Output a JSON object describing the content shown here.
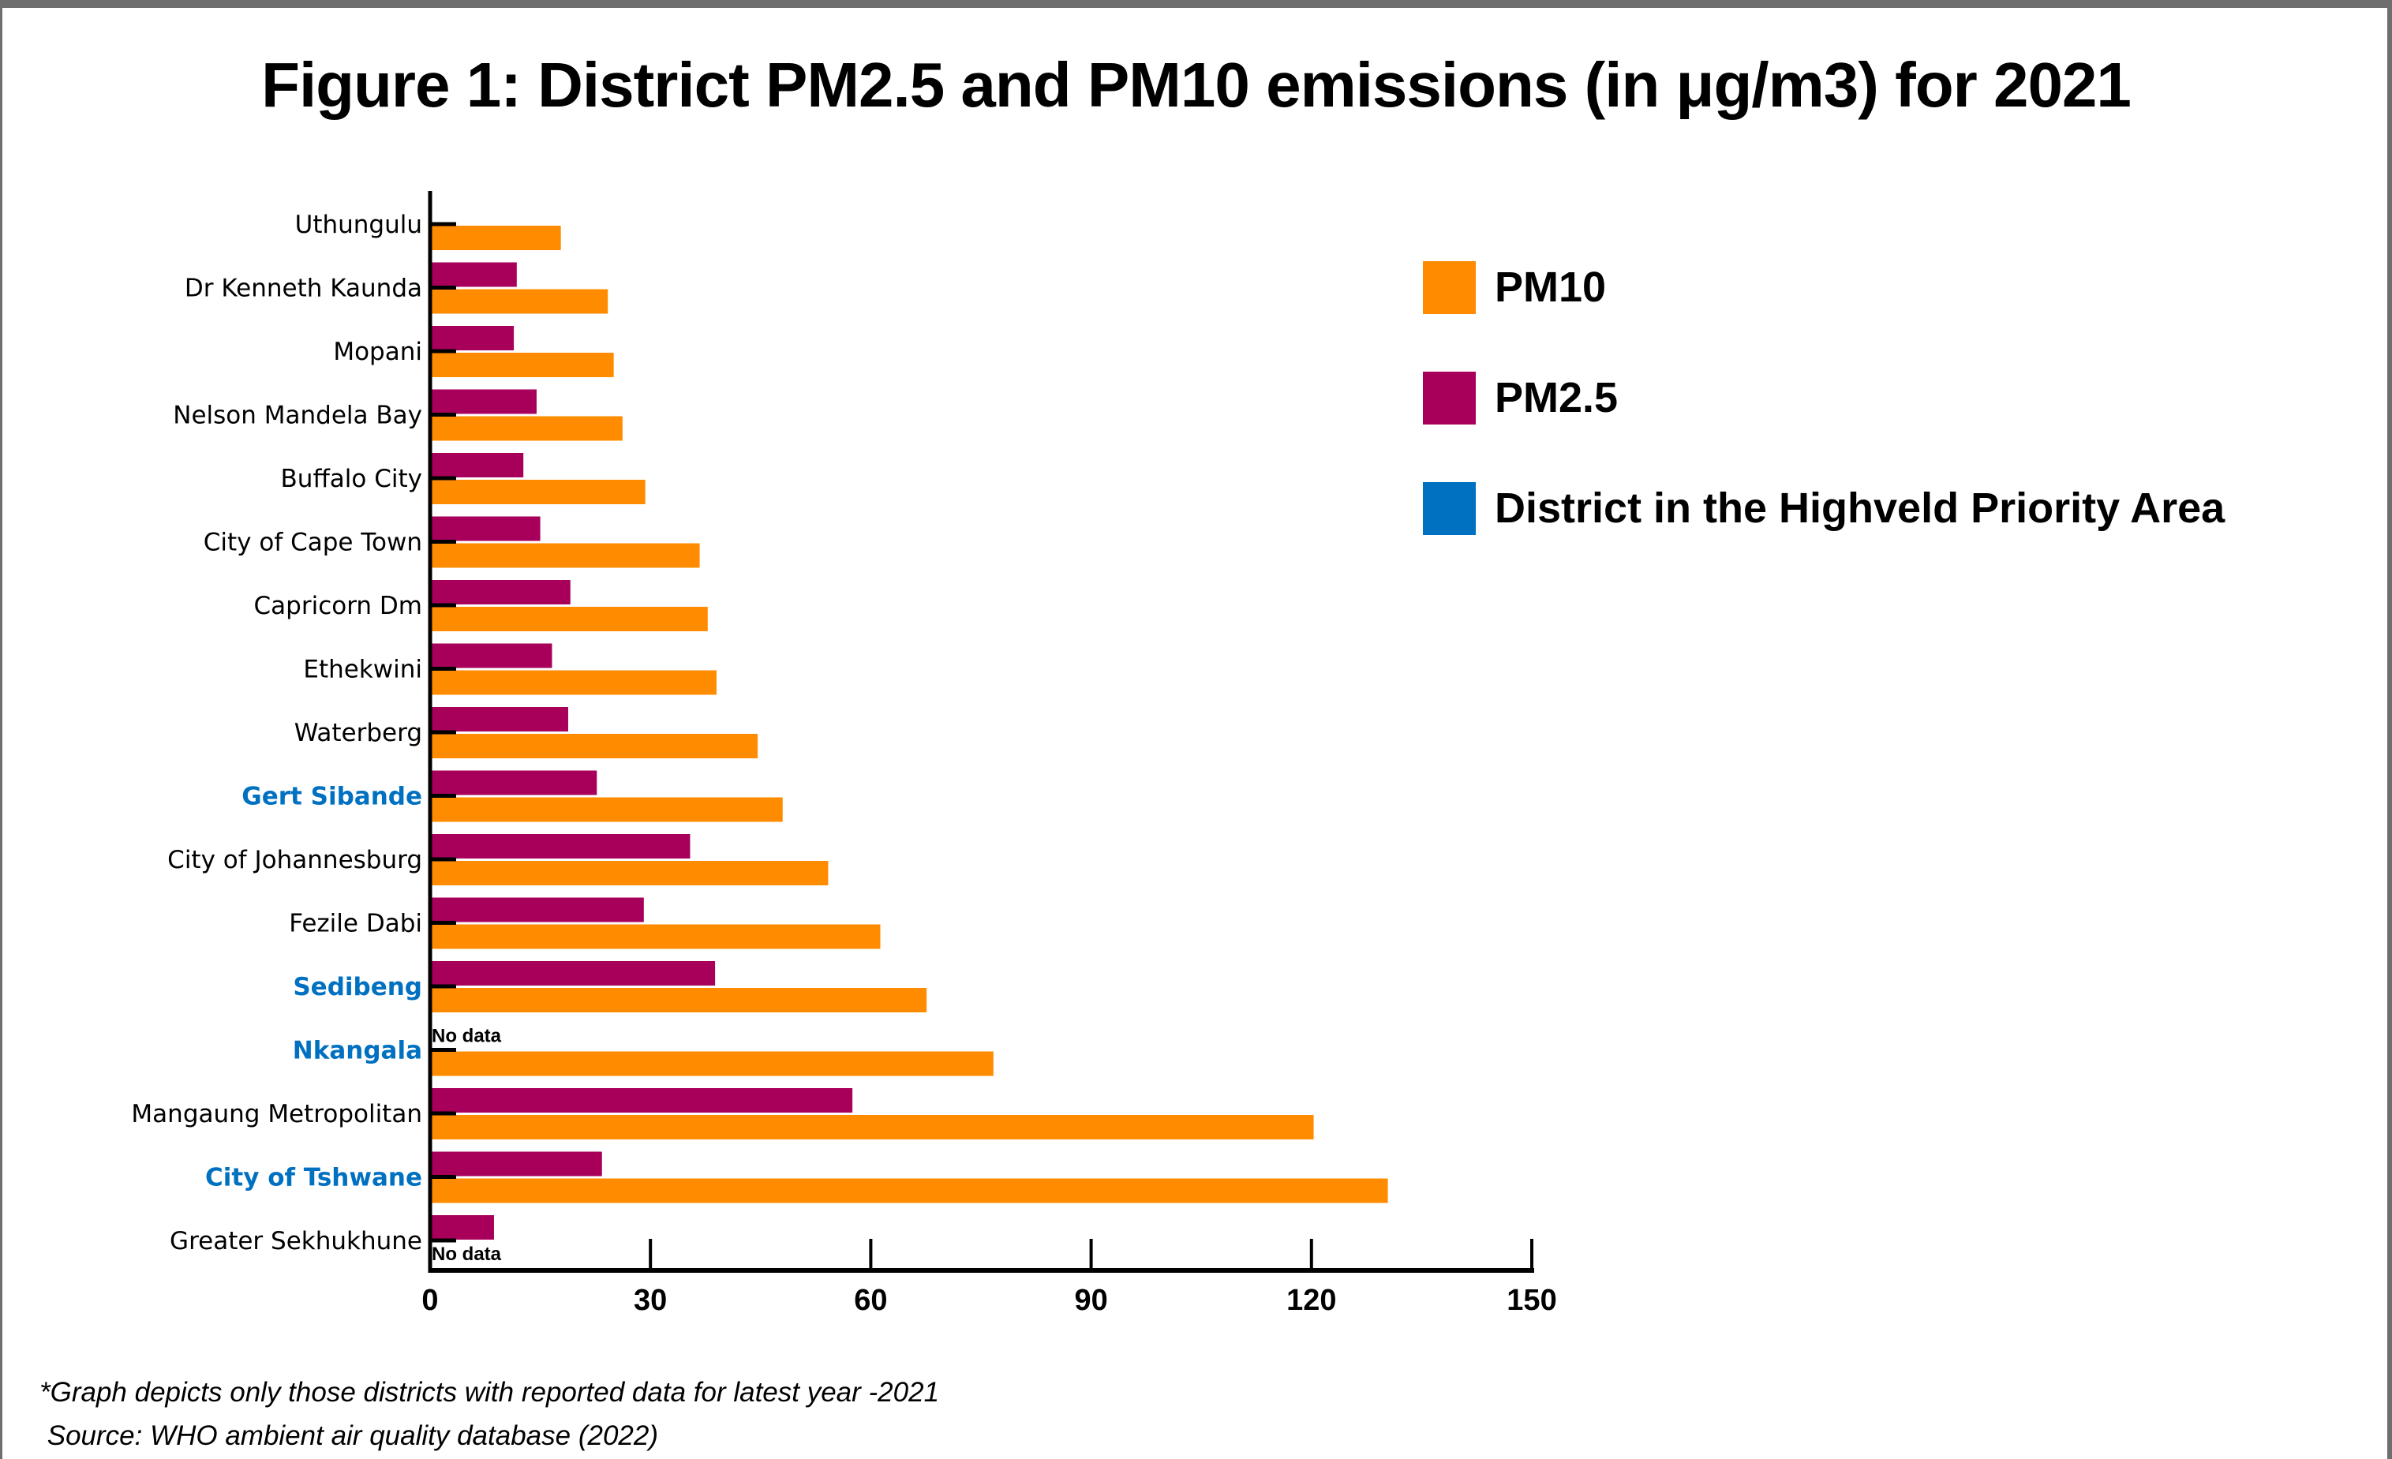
{
  "chart_data": {
    "type": "bar",
    "orientation": "horizontal",
    "title": "Figure 1: District PM2.5 and PM10 emissions (in μg/m3) for 2021",
    "xlabel": "",
    "ylabel": "",
    "xlim": [
      0,
      150
    ],
    "xticks": [
      0,
      30,
      60,
      90,
      120,
      150
    ],
    "xtick_labels": [
      "0",
      "30",
      "60",
      "90",
      "120",
      "150"
    ],
    "grid": false,
    "legend_position": "top-right",
    "categories": [
      "Uthungulu",
      "Dr Kenneth Kaunda",
      "Mopani",
      "Nelson Mandela Bay",
      "Buffalo City",
      "City of Cape Town",
      "Capricorn Dm",
      "Ethekwini",
      "Waterberg",
      "Gert Sibande",
      "City of Johannesburg",
      "Fezile Dabi",
      "Sedibeng",
      "Nkangala",
      "Mangaung Metropolitan",
      "City of Tshwane",
      "Greater Sekhukhune"
    ],
    "highveld_priority_area": [
      false,
      false,
      false,
      false,
      false,
      false,
      false,
      false,
      false,
      true,
      false,
      false,
      true,
      true,
      false,
      true,
      false
    ],
    "series": [
      {
        "name": "PM2.5",
        "color": "#a8005a",
        "values": [
          null,
          11.8,
          11.4,
          14.5,
          12.7,
          15.0,
          19.1,
          16.6,
          18.8,
          22.7,
          35.4,
          29.1,
          38.8,
          null,
          57.5,
          23.4,
          8.7
        ]
      },
      {
        "name": "PM10",
        "color": "#ff8c00",
        "values": [
          17.8,
          24.2,
          25.0,
          26.2,
          29.3,
          36.7,
          37.8,
          39.0,
          44.6,
          48.0,
          54.2,
          61.3,
          67.6,
          76.7,
          120.3,
          130.4,
          null
        ]
      }
    ],
    "annotations": [
      {
        "category": "Nkangala",
        "series": "PM2.5",
        "text": "No data"
      },
      {
        "category": "Greater Sekhukhune",
        "series": "PM10",
        "text": "No data"
      }
    ],
    "legend": [
      {
        "label": "PM10",
        "color": "#ff8c00"
      },
      {
        "label": "PM2.5",
        "color": "#a8005a"
      },
      {
        "label": "District in the Highveld Priority Area",
        "color": "#0070c0"
      }
    ]
  },
  "colors": {
    "pm10": "#ff8c00",
    "pm25": "#a8005a",
    "highveld": "#0070c0",
    "default_label": "#000000"
  },
  "footnotes": {
    "note": "*Graph depicts only those districts with reported data for latest year -2021",
    "source": " Source: WHO ambient air quality database (2022)"
  }
}
